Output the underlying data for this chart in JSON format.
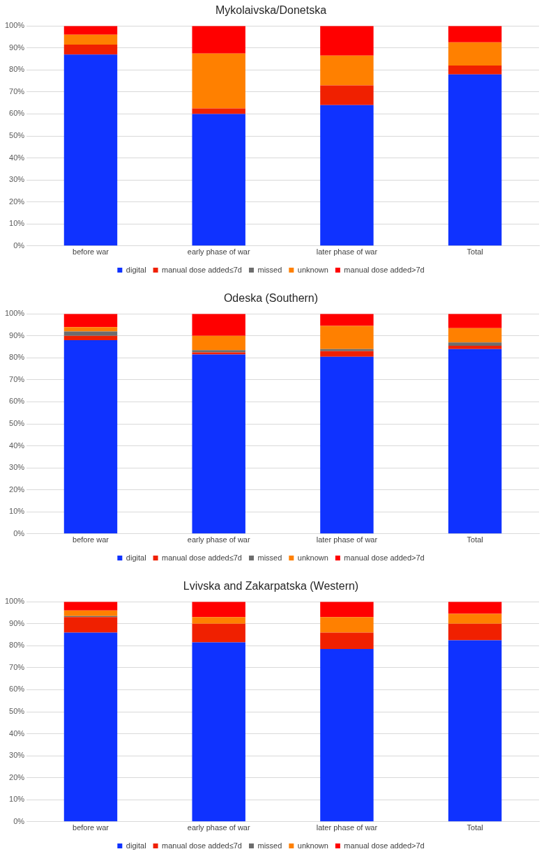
{
  "chart_data": [
    {
      "type": "bar",
      "title": "Mykolaivska/Donetska",
      "stacked": true,
      "categories": [
        "before war",
        "early phase of war",
        "later phase of war",
        "Total"
      ],
      "series": [
        {
          "name": "digital",
          "color": "#0f32ff",
          "values": [
            87,
            60,
            64,
            78
          ]
        },
        {
          "name": "manual dose added≤7d",
          "color": "#f02000",
          "values": [
            4.5,
            2.5,
            9,
            4
          ]
        },
        {
          "name": "missed",
          "color": "#6d6d6d",
          "values": [
            0,
            0,
            0,
            0
          ]
        },
        {
          "name": "unknown",
          "color": "#ff8000",
          "values": [
            4.5,
            25,
            13.5,
            10.5
          ]
        },
        {
          "name": "manual dose added>7d",
          "color": "#ff0000",
          "values": [
            4,
            12.5,
            13.5,
            7.5
          ]
        }
      ],
      "ylim": [
        0,
        100
      ],
      "yticks": [
        {
          "value": 0,
          "label": "0%"
        },
        {
          "value": 10,
          "label": "10%"
        },
        {
          "value": 20,
          "label": "20%"
        },
        {
          "value": 30,
          "label": "30%"
        },
        {
          "value": 40,
          "label": "40%"
        },
        {
          "value": 50,
          "label": "50%"
        },
        {
          "value": 60,
          "label": "60%"
        },
        {
          "value": 70,
          "label": "70%"
        },
        {
          "value": 80,
          "label": "80%"
        },
        {
          "value": 90,
          "label": "90%"
        },
        {
          "value": 100,
          "label": "100%"
        }
      ],
      "grid": "y",
      "legend": "bottom"
    },
    {
      "type": "bar",
      "title": "Odeska (Southern)",
      "stacked": true,
      "categories": [
        "before war",
        "early phase of war",
        "later phase of war",
        "Total"
      ],
      "series": [
        {
          "name": "digital",
          "color": "#0f32ff",
          "values": [
            88,
            81.5,
            80.5,
            84
          ]
        },
        {
          "name": "manual dose added≤7d",
          "color": "#f02000",
          "values": [
            2,
            1,
            2.5,
            1.5
          ]
        },
        {
          "name": "missed",
          "color": "#6d6d6d",
          "values": [
            2,
            1,
            1,
            1.5
          ]
        },
        {
          "name": "unknown",
          "color": "#ff8000",
          "values": [
            2,
            6.5,
            10.5,
            6.5
          ]
        },
        {
          "name": "manual dose added>7d",
          "color": "#ff0000",
          "values": [
            6,
            10,
            5.5,
            6.5
          ]
        }
      ],
      "ylim": [
        0,
        100
      ],
      "yticks": [
        {
          "value": 0,
          "label": "0%"
        },
        {
          "value": 10,
          "label": "10%"
        },
        {
          "value": 20,
          "label": "20%"
        },
        {
          "value": 30,
          "label": "30%"
        },
        {
          "value": 40,
          "label": "40%"
        },
        {
          "value": 50,
          "label": "50%"
        },
        {
          "value": 60,
          "label": "60%"
        },
        {
          "value": 70,
          "label": "70%"
        },
        {
          "value": 80,
          "label": "80%"
        },
        {
          "value": 90,
          "label": "90%"
        },
        {
          "value": 100,
          "label": "100%"
        }
      ],
      "grid": "y",
      "legend": "bottom"
    },
    {
      "type": "bar",
      "title": "Lvivska and Zakarpatska (Western)",
      "stacked": true,
      "categories": [
        "before war",
        "early phase of war",
        "later phase of war",
        "Total"
      ],
      "series": [
        {
          "name": "digital",
          "color": "#0f32ff",
          "values": [
            86,
            81.5,
            78.5,
            82.5
          ]
        },
        {
          "name": "manual dose added≤7d",
          "color": "#f02000",
          "values": [
            7,
            8.5,
            7.5,
            7.5
          ]
        },
        {
          "name": "missed",
          "color": "#6d6d6d",
          "values": [
            0.5,
            0,
            0,
            0
          ]
        },
        {
          "name": "unknown",
          "color": "#ff8000",
          "values": [
            2.5,
            3,
            7,
            4.5
          ]
        },
        {
          "name": "manual dose added>7d",
          "color": "#ff0000",
          "values": [
            4,
            7,
            7,
            5.5
          ]
        }
      ],
      "ylim": [
        0,
        100
      ],
      "yticks": [
        {
          "value": 0,
          "label": "0%"
        },
        {
          "value": 10,
          "label": "10%"
        },
        {
          "value": 20,
          "label": "20%"
        },
        {
          "value": 30,
          "label": "30%"
        },
        {
          "value": 40,
          "label": "40%"
        },
        {
          "value": 50,
          "label": "50%"
        },
        {
          "value": 60,
          "label": "60%"
        },
        {
          "value": 70,
          "label": "70%"
        },
        {
          "value": 80,
          "label": "80%"
        },
        {
          "value": 90,
          "label": "90%"
        },
        {
          "value": 100,
          "label": "100%"
        }
      ],
      "grid": "y",
      "legend": "bottom"
    }
  ]
}
